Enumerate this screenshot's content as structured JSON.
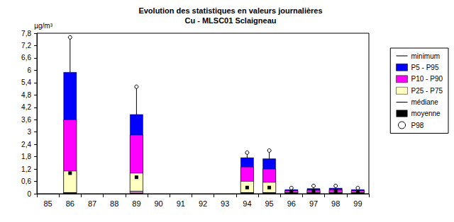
{
  "chart_data": {
    "type": "boxplot",
    "title": "Evolution des statistiques en valeurs journalières",
    "subtitle": "Cu - MLSC01 Sclaigneau",
    "y_label": "µg/m³",
    "categories": [
      "85",
      "86",
      "87",
      "88",
      "89",
      "90",
      "91",
      "92",
      "93",
      "94",
      "95",
      "96",
      "97",
      "98",
      "99"
    ],
    "ylim": [
      0,
      7.8
    ],
    "yticks": [
      0,
      {
        "value": 0.6,
        "label": "0,6"
      },
      {
        "value": 1.2,
        "label": "1,2"
      },
      {
        "value": 1.8,
        "label": "1,8"
      },
      {
        "value": 2.4,
        "label": "2,4"
      },
      3,
      {
        "value": 3.6,
        "label": "3,6"
      },
      {
        "value": 4.2,
        "label": "4,2"
      },
      {
        "value": 4.8,
        "label": "4,8"
      },
      {
        "value": 5.4,
        "label": "5,4"
      },
      6,
      {
        "value": 6.6,
        "label": "6,6"
      },
      {
        "value": 7.2,
        "label": "7,2"
      },
      {
        "value": 7.8,
        "label": "7,8"
      }
    ],
    "grid": false,
    "legend": "right",
    "series": [
      {
        "name": "minimum",
        "type": "scatter",
        "marker": "line",
        "color": "#000000",
        "values": [
          null,
          0,
          null,
          null,
          0,
          null,
          null,
          null,
          null,
          0,
          0,
          0,
          0,
          0,
          0
        ]
      },
      {
        "name": "P5 - P95",
        "type": "range",
        "color": "#0000ff",
        "low": [
          null,
          0.01,
          null,
          null,
          0.01,
          null,
          null,
          null,
          null,
          0.01,
          0.01,
          0.01,
          0.01,
          0.01,
          0.01
        ],
        "high": [
          null,
          5.9,
          null,
          null,
          3.85,
          null,
          null,
          null,
          null,
          1.75,
          1.7,
          0.2,
          0.25,
          0.27,
          0.2
        ]
      },
      {
        "name": "P10 - P90",
        "type": "range",
        "color": "#ff00ff",
        "low": [
          null,
          0.02,
          null,
          null,
          0.02,
          null,
          null,
          null,
          null,
          0.02,
          0.02,
          0.02,
          0.02,
          0.02,
          0.02
        ],
        "high": [
          null,
          3.6,
          null,
          null,
          2.85,
          null,
          null,
          null,
          null,
          1.3,
          1.2,
          0.15,
          0.18,
          0.2,
          0.15
        ]
      },
      {
        "name": "P25 - P75",
        "type": "range",
        "color": "#ffffc0",
        "low": [
          null,
          0.03,
          null,
          null,
          0.05,
          null,
          null,
          null,
          null,
          0.03,
          0.03,
          0.03,
          0.03,
          0.03,
          0.03
        ],
        "high": [
          null,
          1.1,
          null,
          null,
          1.0,
          null,
          null,
          null,
          null,
          0.6,
          0.55,
          0.1,
          0.1,
          0.1,
          0.1
        ]
      },
      {
        "name": "médiane",
        "type": "scatter",
        "marker": "line",
        "color": "#000000",
        "values": [
          null,
          0.05,
          null,
          null,
          0.12,
          null,
          null,
          null,
          null,
          0.05,
          0.05,
          0.05,
          0.05,
          0.05,
          0.05
        ]
      },
      {
        "name": "moyenne",
        "type": "scatter",
        "marker": "square",
        "color": "#000000",
        "values": [
          null,
          1.0,
          null,
          null,
          0.8,
          null,
          null,
          null,
          null,
          0.3,
          0.3,
          0.1,
          0.12,
          0.13,
          0.1
        ]
      },
      {
        "name": "P98",
        "type": "scatter",
        "marker": "circle",
        "color": "#ffffff",
        "values": [
          null,
          7.6,
          null,
          null,
          5.2,
          null,
          null,
          null,
          null,
          2.0,
          2.1,
          0.28,
          0.38,
          0.38,
          0.28
        ]
      }
    ]
  }
}
